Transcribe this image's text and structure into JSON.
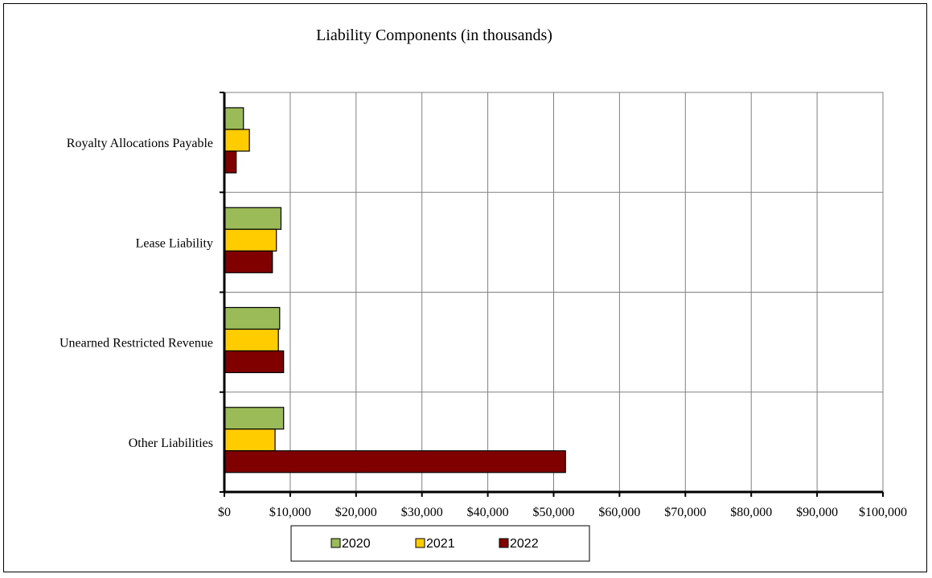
{
  "chart_data": {
    "type": "bar",
    "orientation": "horizontal",
    "title": "Liability Components (in thousands)",
    "xlabel": "",
    "ylabel": "",
    "categories": [
      "Royalty Allocations Payable",
      "Lease Liability",
      "Unearned Restricted Revenue",
      "Other Liabilities"
    ],
    "series": [
      {
        "name": "2020",
        "color": "#9BBB59",
        "values": [
          2900,
          8600,
          8400,
          9000
        ]
      },
      {
        "name": "2021",
        "color": "#FFCC00",
        "values": [
          3800,
          7900,
          8200,
          7700
        ]
      },
      {
        "name": "2022",
        "color": "#800000",
        "values": [
          1800,
          7300,
          9000,
          51800
        ]
      }
    ],
    "xlim": [
      0,
      100000
    ],
    "x_ticks": [
      0,
      10000,
      20000,
      30000,
      40000,
      50000,
      60000,
      70000,
      80000,
      90000,
      100000
    ],
    "x_tick_labels": [
      "$0",
      "$10,000",
      "$20,000",
      "$30,000",
      "$40,000",
      "$50,000",
      "$60,000",
      "$70,000",
      "$80,000",
      "$90,000",
      "$100,000"
    ],
    "grid": true,
    "legend_position": "bottom"
  }
}
